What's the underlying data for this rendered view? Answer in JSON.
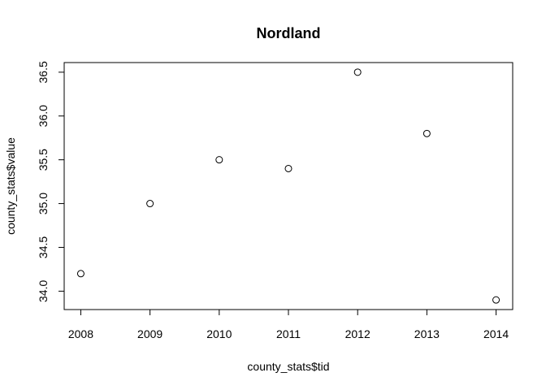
{
  "chart_data": {
    "type": "scatter",
    "title": "Nordland",
    "xlabel": "county_stats$tid",
    "ylabel": "county_stats$value",
    "x": [
      2008,
      2009,
      2010,
      2011,
      2012,
      2013,
      2014
    ],
    "y": [
      34.2,
      35.0,
      35.5,
      35.4,
      36.5,
      35.8,
      33.9
    ],
    "xlim": [
      2007.76,
      2014.24
    ],
    "ylim": [
      33.79,
      36.61
    ],
    "xticks": [
      "2008",
      "2009",
      "2010",
      "2011",
      "2012",
      "2013",
      "2014"
    ],
    "yticks": [
      "34.0",
      "34.5",
      "35.0",
      "35.5",
      "36.0",
      "36.5"
    ],
    "marker": "open-circle",
    "grid": false
  }
}
